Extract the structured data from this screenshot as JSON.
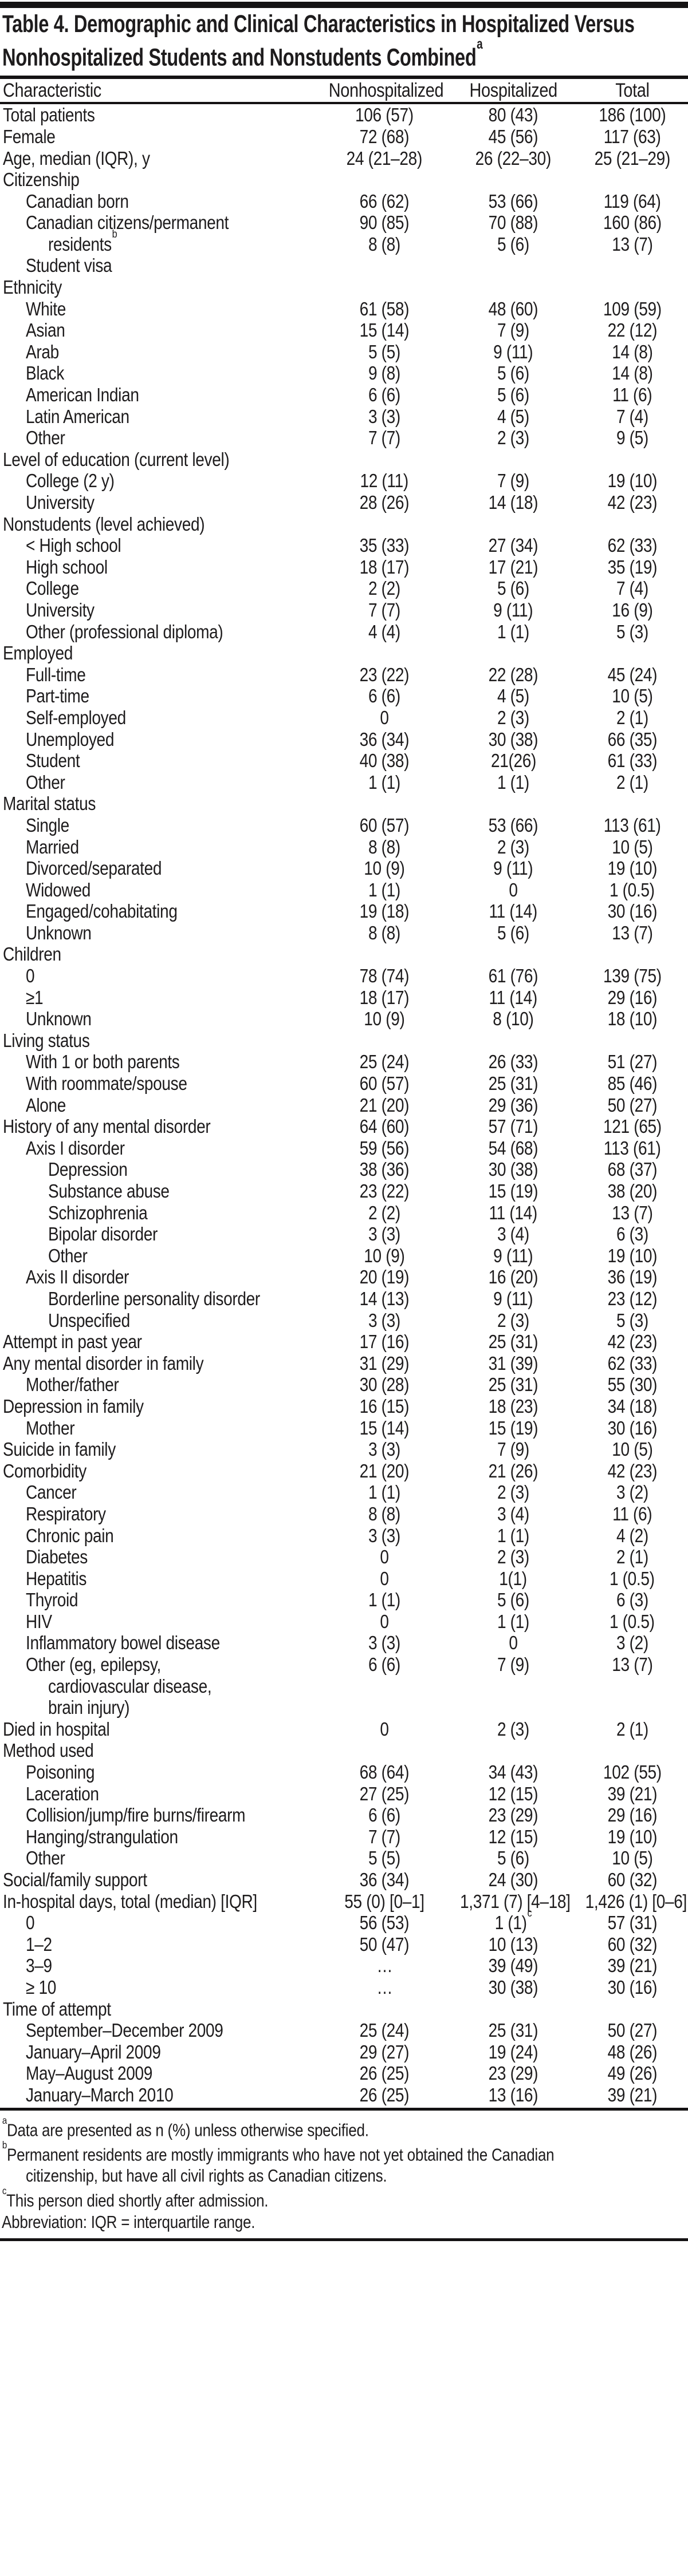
{
  "title": {
    "lines": [
      "Table 4. Demographic and Clinical Characteristics in Hospitalized Versus",
      "Nonhospitalized Students and Nonstudents Combined"
    ],
    "sup": "a"
  },
  "columns": [
    "Characteristic",
    "Nonhospitalized",
    "Hospitalized",
    "Total"
  ],
  "rows": [
    {
      "label": "Total patients",
      "indent": 0,
      "values": [
        "106 (57)",
        "80 (43)",
        "186 (100)"
      ]
    },
    {
      "label": "Female",
      "indent": 0,
      "values": [
        "72 (68)",
        "45 (56)",
        "117 (63)"
      ]
    },
    {
      "label": "Age, median (IQR), y",
      "indent": 0,
      "values": [
        "24 (21–28)",
        "26 (22–30)",
        "25 (21–29)"
      ]
    },
    {
      "label": "Citizenship",
      "indent": 0,
      "values": [
        "",
        "",
        ""
      ]
    },
    {
      "label": "Canadian born",
      "indent": 1,
      "values": [
        "66 (62)",
        "53 (66)",
        "119 (64)"
      ]
    },
    {
      "label": "Canadian citizens/permanent",
      "indent": 1,
      "values": [
        "90 (85)",
        "70 (88)",
        "160 (86)"
      ]
    },
    {
      "label": "residents",
      "label_sup": "b",
      "indent": 2,
      "values": [
        "8 (8)",
        "5 (6)",
        "13 (7)"
      ]
    },
    {
      "label": "Student visa",
      "indent": 1,
      "values": [
        "",
        "",
        ""
      ]
    },
    {
      "label": "Ethnicity",
      "indent": 0,
      "values": [
        "",
        "",
        ""
      ]
    },
    {
      "label": "White",
      "indent": 1,
      "values": [
        "61 (58)",
        "48 (60)",
        "109 (59)"
      ]
    },
    {
      "label": "Asian",
      "indent": 1,
      "values": [
        "15 (14)",
        "7 (9)",
        "22 (12)"
      ]
    },
    {
      "label": "Arab",
      "indent": 1,
      "values": [
        "5 (5)",
        "9 (11)",
        "14 (8)"
      ]
    },
    {
      "label": "Black",
      "indent": 1,
      "values": [
        "9 (8)",
        "5 (6)",
        "14 (8)"
      ]
    },
    {
      "label": "American Indian",
      "indent": 1,
      "values": [
        "6 (6)",
        "5 (6)",
        "11 (6)"
      ]
    },
    {
      "label": "Latin American",
      "indent": 1,
      "values": [
        "3 (3)",
        "4 (5)",
        "7 (4)"
      ]
    },
    {
      "label": "Other",
      "indent": 1,
      "values": [
        "7 (7)",
        "2 (3)",
        "9 (5)"
      ]
    },
    {
      "label": "Level of education  (current level)",
      "indent": 0,
      "values": [
        "",
        "",
        ""
      ]
    },
    {
      "label": "College (2 y)",
      "indent": 1,
      "values": [
        "12 (11)",
        "7 (9)",
        "19 (10)"
      ]
    },
    {
      "label": "University",
      "indent": 1,
      "values": [
        "28 (26)",
        "14 (18)",
        "42 (23)"
      ]
    },
    {
      "label": "Nonstudents (level achieved)",
      "indent": 0,
      "values": [
        "",
        "",
        ""
      ]
    },
    {
      "label": "< High school",
      "indent": 1,
      "values": [
        "35 (33)",
        "27 (34)",
        "62 (33)"
      ]
    },
    {
      "label": "High school",
      "indent": 1,
      "values": [
        "18 (17)",
        "17 (21)",
        "35 (19)"
      ]
    },
    {
      "label": "College",
      "indent": 1,
      "values": [
        "2 (2)",
        "5 (6)",
        "7 (4)"
      ]
    },
    {
      "label": "University",
      "indent": 1,
      "values": [
        "7 (7)",
        "9 (11)",
        "16 (9)"
      ]
    },
    {
      "label": "Other (professional diploma)",
      "indent": 1,
      "values": [
        "4 (4)",
        "1 (1)",
        "5 (3)"
      ]
    },
    {
      "label": "Employed",
      "indent": 0,
      "values": [
        "",
        "",
        ""
      ]
    },
    {
      "label": "Full-time",
      "indent": 1,
      "values": [
        "23 (22)",
        "22 (28)",
        "45 (24)"
      ]
    },
    {
      "label": "Part-time",
      "indent": 1,
      "values": [
        "6 (6)",
        "4 (5)",
        "10 (5)"
      ]
    },
    {
      "label": "Self-employed",
      "indent": 1,
      "values": [
        "0",
        "2 (3)",
        "2 (1)"
      ]
    },
    {
      "label": "Unemployed",
      "indent": 1,
      "values": [
        "36 (34)",
        "30 (38)",
        "66 (35)"
      ]
    },
    {
      "label": "Student",
      "indent": 1,
      "values": [
        "40 (38)",
        "21(26)",
        "61 (33)"
      ]
    },
    {
      "label": "Other",
      "indent": 1,
      "values": [
        "1 (1)",
        "1 (1)",
        "2 (1)"
      ]
    },
    {
      "label": "Marital status",
      "indent": 0,
      "values": [
        "",
        "",
        ""
      ]
    },
    {
      "label": "Single",
      "indent": 1,
      "values": [
        "60 (57)",
        "53 (66)",
        "113 (61)"
      ]
    },
    {
      "label": "Married",
      "indent": 1,
      "values": [
        "8 (8)",
        "2 (3)",
        "10 (5)"
      ]
    },
    {
      "label": "Divorced/separated",
      "indent": 1,
      "values": [
        "10 (9)",
        "9 (11)",
        "19 (10)"
      ]
    },
    {
      "label": "Widowed",
      "indent": 1,
      "values": [
        "1 (1)",
        "0",
        "1 (0.5)"
      ]
    },
    {
      "label": "Engaged/cohabitating",
      "indent": 1,
      "values": [
        "19 (18)",
        "11 (14)",
        "30 (16)"
      ]
    },
    {
      "label": "Unknown",
      "indent": 1,
      "values": [
        "8 (8)",
        "5 (6)",
        "13 (7)"
      ]
    },
    {
      "label": "Children",
      "indent": 0,
      "values": [
        "",
        "",
        ""
      ]
    },
    {
      "label": "0",
      "indent": 1,
      "values": [
        "78 (74)",
        "61 (76)",
        "139 (75)"
      ]
    },
    {
      "label": "≥1",
      "indent": 1,
      "values": [
        "18 (17)",
        "11 (14)",
        "29 (16)"
      ]
    },
    {
      "label": "Unknown",
      "indent": 1,
      "values": [
        "10 (9)",
        "8 (10)",
        "18 (10)"
      ]
    },
    {
      "label": "Living status",
      "indent": 0,
      "values": [
        "",
        "",
        ""
      ]
    },
    {
      "label": "With 1 or both parents",
      "indent": 1,
      "values": [
        "25 (24)",
        "26 (33)",
        "51 (27)"
      ]
    },
    {
      "label": "With roommate/spouse",
      "indent": 1,
      "values": [
        "60 (57)",
        "25 (31)",
        "85 (46)"
      ]
    },
    {
      "label": "Alone",
      "indent": 1,
      "values": [
        "21 (20)",
        "29 (36)",
        "50 (27)"
      ]
    },
    {
      "label": "History of any mental disorder",
      "indent": 0,
      "values": [
        "64 (60)",
        "57 (71)",
        "121 (65)"
      ]
    },
    {
      "label": "Axis I disorder",
      "indent": 1,
      "values": [
        "59 (56)",
        "54 (68)",
        "113 (61)"
      ]
    },
    {
      "label": "Depression",
      "indent": 2,
      "values": [
        "38 (36)",
        "30 (38)",
        "68 (37)"
      ]
    },
    {
      "label": "Substance abuse",
      "indent": 2,
      "values": [
        "23 (22)",
        "15 (19)",
        "38 (20)"
      ]
    },
    {
      "label": "Schizophrenia",
      "indent": 2,
      "values": [
        "2 (2)",
        "11 (14)",
        "13 (7)"
      ]
    },
    {
      "label": "Bipolar disorder",
      "indent": 2,
      "values": [
        "3 (3)",
        "3 (4)",
        "6 (3)"
      ]
    },
    {
      "label": "Other",
      "indent": 2,
      "values": [
        "10 (9)",
        "9 (11)",
        "19 (10)"
      ]
    },
    {
      "label": "Axis II disorder",
      "indent": 1,
      "values": [
        "20 (19)",
        "16 (20)",
        "36 (19)"
      ]
    },
    {
      "label": "Borderline personality disorder",
      "indent": 2,
      "values": [
        "14 (13)",
        "9 (11)",
        "23 (12)"
      ]
    },
    {
      "label": "Unspecified",
      "indent": 2,
      "values": [
        "3 (3)",
        "2 (3)",
        "5 (3)"
      ]
    },
    {
      "label": "Attempt in past year",
      "indent": 0,
      "values": [
        "17 (16)",
        "25 (31)",
        "42 (23)"
      ]
    },
    {
      "label": "Any mental disorder in family",
      "indent": 0,
      "values": [
        "31 (29)",
        "31 (39)",
        "62 (33)"
      ]
    },
    {
      "label": "Mother/father",
      "indent": 1,
      "values": [
        "30 (28)",
        "25 (31)",
        "55 (30)"
      ]
    },
    {
      "label": "Depression in family",
      "indent": 0,
      "values": [
        "16 (15)",
        "18 (23)",
        "34 (18)"
      ]
    },
    {
      "label": "Mother",
      "indent": 1,
      "values": [
        "15 (14)",
        "15 (19)",
        "30 (16)"
      ]
    },
    {
      "label": "Suicide in family",
      "indent": 0,
      "values": [
        "3 (3)",
        "7 (9)",
        "10 (5)"
      ]
    },
    {
      "label": "Comorbidity",
      "indent": 0,
      "values": [
        "21 (20)",
        "21 (26)",
        "42 (23)"
      ]
    },
    {
      "label": "Cancer",
      "indent": 1,
      "values": [
        "1 (1)",
        "2 (3)",
        "3 (2)"
      ]
    },
    {
      "label": "Respiratory",
      "indent": 1,
      "values": [
        "8 (8)",
        "3 (4)",
        "11 (6)"
      ]
    },
    {
      "label": "Chronic pain",
      "indent": 1,
      "values": [
        "3 (3)",
        "1 (1)",
        "4 (2)"
      ]
    },
    {
      "label": "Diabetes",
      "indent": 1,
      "values": [
        "0",
        "2 (3)",
        "2 (1)"
      ]
    },
    {
      "label": "Hepatitis",
      "indent": 1,
      "values": [
        "0",
        "1(1)",
        "1 (0.5)"
      ]
    },
    {
      "label": "Thyroid",
      "indent": 1,
      "values": [
        "1 (1)",
        "5 (6)",
        "6 (3)"
      ]
    },
    {
      "label": "HIV",
      "indent": 1,
      "values": [
        "0",
        "1 (1)",
        "1 (0.5)"
      ]
    },
    {
      "label": "Inflammatory bowel disease",
      "indent": 1,
      "values": [
        "3 (3)",
        "0",
        "3 (2)"
      ]
    },
    {
      "label": "Other (eg, epilepsy,",
      "indent": 1,
      "values": [
        "6 (6)",
        "7 (9)",
        "13 (7)"
      ]
    },
    {
      "label": "cardiovascular disease,",
      "indent": 2,
      "values": [
        "",
        "",
        ""
      ]
    },
    {
      "label": "brain injury)",
      "indent": 2,
      "values": [
        "",
        "",
        ""
      ]
    },
    {
      "label": "Died in hospital",
      "indent": 0,
      "values": [
        "0",
        "2 (3)",
        "2 (1)"
      ]
    },
    {
      "label": "Method used",
      "indent": 0,
      "values": [
        "",
        "",
        ""
      ]
    },
    {
      "label": "Poisoning",
      "indent": 1,
      "values": [
        "68 (64)",
        "34 (43)",
        "102 (55)"
      ]
    },
    {
      "label": "Laceration",
      "indent": 1,
      "values": [
        "27 (25)",
        "12 (15)",
        "39 (21)"
      ]
    },
    {
      "label": "Collision/jump/fire burns/firearm",
      "indent": 1,
      "values": [
        "6 (6)",
        "23 (29)",
        "29 (16)"
      ]
    },
    {
      "label": "Hanging/strangulation",
      "indent": 1,
      "values": [
        "7 (7)",
        "12 (15)",
        "19 (10)"
      ]
    },
    {
      "label": "Other",
      "indent": 1,
      "values": [
        "5 (5)",
        "5 (6)",
        "10 (5)"
      ]
    },
    {
      "label": "Social/family support",
      "indent": 0,
      "values": [
        "36 (34)",
        "24 (30)",
        "60 (32)"
      ]
    },
    {
      "label": "In-hospital days, total (median) [IQR]",
      "indent": 0,
      "values": [
        "55 (0) [0–1]",
        "1,371 (7) [4–18]",
        "1,426 (1) [0–6]"
      ]
    },
    {
      "label": "0",
      "indent": 1,
      "values": [
        "56 (53)",
        "1 (1)",
        "57 (31)"
      ],
      "value_sups": [
        "",
        "c",
        ""
      ]
    },
    {
      "label": "1–2",
      "indent": 1,
      "values": [
        "50 (47)",
        "10 (13)",
        "60 (32)"
      ]
    },
    {
      "label": "3–9",
      "indent": 1,
      "values": [
        "…",
        "39 (49)",
        "39 (21)"
      ]
    },
    {
      "label": "≥ 10",
      "indent": 1,
      "values": [
        "…",
        "30 (38)",
        "30 (16)"
      ]
    },
    {
      "label": "Time of attempt",
      "indent": 0,
      "values": [
        "",
        "",
        ""
      ]
    },
    {
      "label": "September–December 2009",
      "indent": 1,
      "values": [
        "25 (24)",
        "25 (31)",
        "50 (27)"
      ]
    },
    {
      "label": "January–April 2009",
      "indent": 1,
      "values": [
        "29 (27)",
        "19 (24)",
        "48 (26)"
      ]
    },
    {
      "label": "May–August 2009",
      "indent": 1,
      "values": [
        "26 (25)",
        "23 (29)",
        "49 (26)"
      ]
    },
    {
      "label": "January–March 2010",
      "indent": 1,
      "values": [
        "26 (25)",
        "13 (16)",
        "39 (21)"
      ]
    }
  ],
  "footnotes": [
    {
      "sup": "a",
      "text": "Data are presented as n (%) unless otherwise specified.",
      "indent": false
    },
    {
      "sup": "b",
      "text": "Permanent residents are mostly immigrants who have not yet obtained the Canadian",
      "indent": false
    },
    {
      "sup": "",
      "text": "citizenship, but have all civil rights as Canadian citizens.",
      "indent": true
    },
    {
      "sup": "c",
      "text": "This person died shortly after admission.",
      "indent": false
    },
    {
      "sup": "",
      "text": "Abbreviation: IQR = interquartile range.",
      "indent": false
    }
  ],
  "colors": {
    "text": "#1e1c1d",
    "rule": "#141213",
    "background": "#ffffff"
  }
}
